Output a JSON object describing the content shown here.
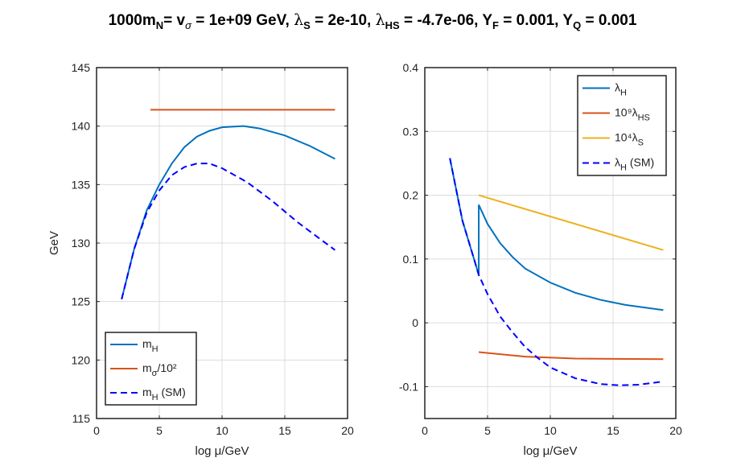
{
  "title": {
    "pre": "1000m",
    "n": "N",
    "eq1": "= v",
    "sig": "σ",
    "eq2": " = 1e+09 GeV, ",
    "lam": "λ",
    "s": "S",
    "eq3": " = 2e-10, ",
    "hs": "HS",
    "eq4": " = -4.7e-06, Y",
    "f": "F",
    "eq5": " = 0.001, Y",
    "q": "Q",
    "eq6": " = 0.001"
  },
  "chart_data": [
    {
      "type": "line",
      "xlabel": "log μ/GeV",
      "ylabel": "GeV",
      "xlim": [
        0,
        20
      ],
      "ylim": [
        115,
        145
      ],
      "grid": true,
      "xticks": [
        0,
        5,
        10,
        15,
        20
      ],
      "yticks": [
        115,
        120,
        125,
        130,
        135,
        140,
        145
      ],
      "legend_position": "bottom-left",
      "series": [
        {
          "name": "m_H",
          "legend": [
            "m",
            "H",
            ""
          ],
          "color": "#0072BD",
          "dash": false,
          "x": [
            2,
            3,
            4,
            5,
            6,
            7,
            8,
            9,
            10,
            11.7,
            13,
            15,
            17,
            19
          ],
          "y": [
            125.2,
            129.5,
            132.8,
            135,
            136.8,
            138.2,
            139.1,
            139.6,
            139.9,
            140,
            139.8,
            139.2,
            138.3,
            137.2
          ]
        },
        {
          "name": "m_σ/10^2",
          "legend": [
            "m",
            "σ",
            "/10²"
          ],
          "color": "#D95319",
          "dash": false,
          "x": [
            4.3,
            19
          ],
          "y": [
            141.4,
            141.4
          ]
        },
        {
          "name": "m_H (SM)",
          "legend": [
            "m",
            "H",
            " (SM)"
          ],
          "color": "#0000FF",
          "dash": true,
          "x": [
            2,
            3,
            4,
            5,
            6,
            7,
            8,
            9,
            10,
            12,
            14,
            16,
            18,
            19
          ],
          "y": [
            125.2,
            129.5,
            132.6,
            134.5,
            135.8,
            136.5,
            136.8,
            136.8,
            136.4,
            135.2,
            133.6,
            131.8,
            130.2,
            129.4
          ]
        }
      ]
    },
    {
      "type": "line",
      "xlabel": "log μ/GeV",
      "ylabel": "",
      "xlim": [
        0,
        20
      ],
      "ylim": [
        -0.15,
        0.4
      ],
      "grid": true,
      "xticks": [
        0,
        5,
        10,
        15,
        20
      ],
      "yticks": [
        -0.1,
        0,
        0.1,
        0.2,
        0.3,
        0.4
      ],
      "ytick_labels": [
        "-0.1",
        "0",
        "0.1",
        "0.2",
        "0.3",
        "0.4"
      ],
      "legend_position": "top-right",
      "series": [
        {
          "name": "λ_H",
          "legend": [
            "λ",
            "H",
            ""
          ],
          "color": "#0072BD",
          "dash": false,
          "x": [
            2,
            3,
            4,
            4.3,
            4.3,
            5,
            6,
            7,
            8,
            10,
            12,
            14,
            16,
            19
          ],
          "y": [
            0.258,
            0.16,
            0.095,
            0.075,
            0.185,
            0.155,
            0.125,
            0.103,
            0.085,
            0.063,
            0.047,
            0.036,
            0.028,
            0.02
          ]
        },
        {
          "name": "10^9 λ_HS",
          "legend": [
            "10⁹λ",
            "HS",
            ""
          ],
          "color": "#D95319",
          "dash": false,
          "x": [
            4.3,
            8,
            12,
            19
          ],
          "y": [
            -0.046,
            -0.053,
            -0.056,
            -0.057
          ]
        },
        {
          "name": "10^4 λ_S",
          "legend": [
            "10⁴λ",
            "S",
            ""
          ],
          "color": "#EDB120",
          "dash": false,
          "x": [
            4.3,
            19
          ],
          "y": [
            0.2,
            0.114
          ]
        },
        {
          "name": "λ_H (SM)",
          "legend": [
            "λ",
            "H",
            " (SM)"
          ],
          "color": "#0000FF",
          "dash": true,
          "x": [
            2,
            3,
            4,
            4.3,
            5,
            6,
            7,
            8,
            9,
            10,
            12,
            14,
            15.5,
            17,
            19
          ],
          "y": [
            0.258,
            0.16,
            0.095,
            0.075,
            0.045,
            0.01,
            -0.015,
            -0.038,
            -0.055,
            -0.07,
            -0.087,
            -0.096,
            -0.098,
            -0.097,
            -0.092
          ]
        }
      ]
    }
  ]
}
